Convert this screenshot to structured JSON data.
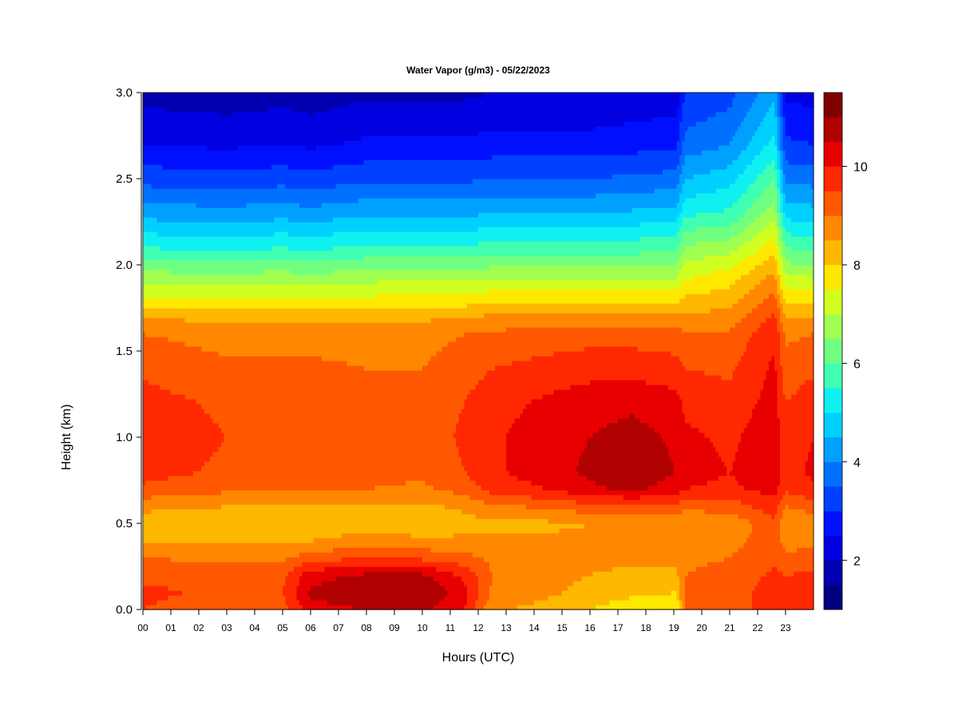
{
  "chart_data": {
    "type": "heatmap",
    "title": "Water Vapor (g/m3) - 05/22/2023",
    "xlabel": "Hours (UTC)",
    "ylabel": "Height (km)",
    "xlim": [
      0,
      24
    ],
    "ylim": [
      0,
      3.0
    ],
    "x_tick_labels": [
      "00",
      "01",
      "02",
      "03",
      "04",
      "05",
      "06",
      "07",
      "08",
      "09",
      "10",
      "11",
      "12",
      "13",
      "14",
      "15",
      "16",
      "17",
      "18",
      "19",
      "20",
      "21",
      "22",
      "23"
    ],
    "y_tick_labels": [
      "0.0",
      "0.5",
      "1.0",
      "1.5",
      "2.0",
      "2.5",
      "3.0"
    ],
    "colorbar": {
      "min": 1.0,
      "max": 11.5,
      "levels": 21,
      "tick_values": [
        2,
        4,
        6,
        8,
        10
      ],
      "tick_labels": [
        "2",
        "4",
        "6",
        "8",
        "10"
      ],
      "colors": [
        "#000080",
        "#0000b0",
        "#0000e0",
        "#0010ff",
        "#0040ff",
        "#0070ff",
        "#00a0ff",
        "#00d0ff",
        "#10f0f0",
        "#40ffb0",
        "#70ff80",
        "#a0ff50",
        "#d0ff20",
        "#ffe800",
        "#ffb800",
        "#ff8800",
        "#ff5800",
        "#ff2800",
        "#e80000",
        "#b00000",
        "#800000"
      ]
    },
    "profile_heights_km": [
      0.0,
      0.1,
      0.2,
      0.3,
      0.4,
      0.5,
      0.6,
      0.7,
      0.8,
      1.0,
      1.2,
      1.4,
      1.6,
      1.7,
      1.8,
      1.9,
      2.0,
      2.1,
      2.2,
      2.3,
      2.5,
      2.7,
      3.0
    ],
    "profiles": [
      {
        "hour": 0,
        "values": [
          9.5,
          9.6,
          9.4,
          9.0,
          8.5,
          8.3,
          8.6,
          9.4,
          9.7,
          9.8,
          9.7,
          9.4,
          9.0,
          8.5,
          7.6,
          7.0,
          6.2,
          5.5,
          4.9,
          4.3,
          3.3,
          2.5,
          1.8
        ]
      },
      {
        "hour": 3,
        "values": [
          9.2,
          9.4,
          9.3,
          8.9,
          8.4,
          8.2,
          8.5,
          9.1,
          9.4,
          9.5,
          9.4,
          9.1,
          8.8,
          8.3,
          7.5,
          6.9,
          6.1,
          5.4,
          4.8,
          4.2,
          3.2,
          2.4,
          1.7
        ]
      },
      {
        "hour": 5,
        "values": [
          9.3,
          9.5,
          9.4,
          8.9,
          8.4,
          8.2,
          8.5,
          9.0,
          9.3,
          9.4,
          9.3,
          9.1,
          8.8,
          8.4,
          7.6,
          7.0,
          6.2,
          5.5,
          4.9,
          4.3,
          3.3,
          2.5,
          1.8
        ]
      },
      {
        "hour": 6,
        "values": [
          10.3,
          10.6,
          10.3,
          9.3,
          8.5,
          8.2,
          8.5,
          9.0,
          9.3,
          9.4,
          9.3,
          9.1,
          8.8,
          8.3,
          7.5,
          6.9,
          6.1,
          5.4,
          4.8,
          4.2,
          3.2,
          2.4,
          1.7
        ]
      },
      {
        "hour": 8,
        "values": [
          10.5,
          10.9,
          10.6,
          9.5,
          8.7,
          8.3,
          8.5,
          9.0,
          9.2,
          9.3,
          9.2,
          9.0,
          8.8,
          8.3,
          7.6,
          7.0,
          6.3,
          5.6,
          5.0,
          4.4,
          3.4,
          2.6,
          1.9
        ]
      },
      {
        "hour": 10,
        "values": [
          10.6,
          11.0,
          10.6,
          9.4,
          8.6,
          8.2,
          8.4,
          8.9,
          9.1,
          9.2,
          9.2,
          9.0,
          8.8,
          8.4,
          7.7,
          7.1,
          6.3,
          5.6,
          5.0,
          4.4,
          3.4,
          2.6,
          1.9
        ]
      },
      {
        "hour": 11.5,
        "values": [
          10.0,
          10.2,
          9.9,
          9.2,
          8.6,
          8.3,
          8.6,
          9.2,
          9.5,
          9.6,
          9.5,
          9.3,
          9.0,
          8.5,
          7.7,
          7.1,
          6.3,
          5.6,
          5.0,
          4.4,
          3.4,
          2.6,
          1.9
        ]
      },
      {
        "hour": 12.5,
        "values": [
          8.6,
          8.9,
          9.0,
          8.9,
          8.6,
          8.4,
          8.9,
          9.7,
          9.9,
          9.9,
          9.8,
          9.5,
          9.1,
          8.6,
          7.8,
          7.2,
          6.4,
          5.7,
          5.1,
          4.5,
          3.5,
          2.7,
          2.0
        ]
      },
      {
        "hour": 14.5,
        "values": [
          8.3,
          8.6,
          8.7,
          8.7,
          8.6,
          8.4,
          9.1,
          10.0,
          10.3,
          10.3,
          10.1,
          9.7,
          9.2,
          8.7,
          7.8,
          7.2,
          6.4,
          5.7,
          5.1,
          4.5,
          3.5,
          2.7,
          2.0
        ]
      },
      {
        "hour": 16,
        "values": [
          8.0,
          8.3,
          8.5,
          8.6,
          8.6,
          8.5,
          9.3,
          10.4,
          10.6,
          10.5,
          10.3,
          9.8,
          9.3,
          8.7,
          7.8,
          7.2,
          6.4,
          5.7,
          5.1,
          4.5,
          3.5,
          2.7,
          2.0
        ]
      },
      {
        "hour": 17.5,
        "values": [
          7.7,
          8.1,
          8.4,
          8.6,
          8.6,
          8.5,
          9.4,
          10.6,
          10.8,
          10.7,
          10.4,
          9.8,
          9.3,
          8.7,
          7.8,
          7.2,
          6.4,
          5.8,
          5.2,
          4.6,
          3.6,
          2.8,
          2.1
        ]
      },
      {
        "hour": 19.1,
        "values": [
          7.6,
          8.0,
          8.4,
          8.6,
          8.6,
          8.5,
          9.3,
          10.3,
          10.5,
          10.4,
          10.2,
          9.7,
          9.2,
          8.6,
          7.8,
          7.2,
          6.5,
          5.9,
          5.3,
          4.7,
          3.7,
          2.9,
          2.2
        ]
      },
      {
        "hour": 19.4,
        "values": [
          9.2,
          9.1,
          9.0,
          8.9,
          8.7,
          8.5,
          9.2,
          10.0,
          10.2,
          10.1,
          9.9,
          9.5,
          9.1,
          8.6,
          8.1,
          7.6,
          7.1,
          6.6,
          6.0,
          5.4,
          4.5,
          3.7,
          3.0
        ]
      },
      {
        "hour": 21,
        "values": [
          9.4,
          9.3,
          9.2,
          9.0,
          8.8,
          8.6,
          9.2,
          9.9,
          10.0,
          9.9,
          9.7,
          9.4,
          9.1,
          8.7,
          8.3,
          7.9,
          7.4,
          6.8,
          6.2,
          5.6,
          4.8,
          4.0,
          3.3
        ]
      },
      {
        "hour": 22.6,
        "values": [
          9.6,
          9.7,
          9.6,
          9.4,
          9.3,
          9.4,
          9.8,
          10.2,
          10.3,
          10.3,
          10.2,
          10.1,
          9.9,
          9.6,
          9.2,
          8.8,
          8.3,
          7.8,
          7.3,
          6.8,
          6.0,
          5.2,
          4.4
        ]
      },
      {
        "hour": 23,
        "values": [
          9.5,
          9.7,
          9.5,
          9.1,
          8.8,
          8.6,
          9.0,
          9.6,
          9.8,
          9.7,
          9.5,
          9.2,
          8.9,
          8.5,
          7.8,
          7.3,
          6.6,
          6.0,
          5.4,
          4.8,
          3.9,
          3.1,
          2.4
        ]
      },
      {
        "hour": 24,
        "values": [
          9.6,
          9.8,
          9.6,
          9.2,
          8.9,
          8.7,
          9.2,
          9.9,
          10.1,
          10.0,
          9.8,
          9.4,
          9.0,
          8.5,
          7.8,
          7.2,
          6.5,
          5.9,
          5.3,
          4.7,
          3.8,
          3.0,
          2.3
        ]
      }
    ]
  }
}
